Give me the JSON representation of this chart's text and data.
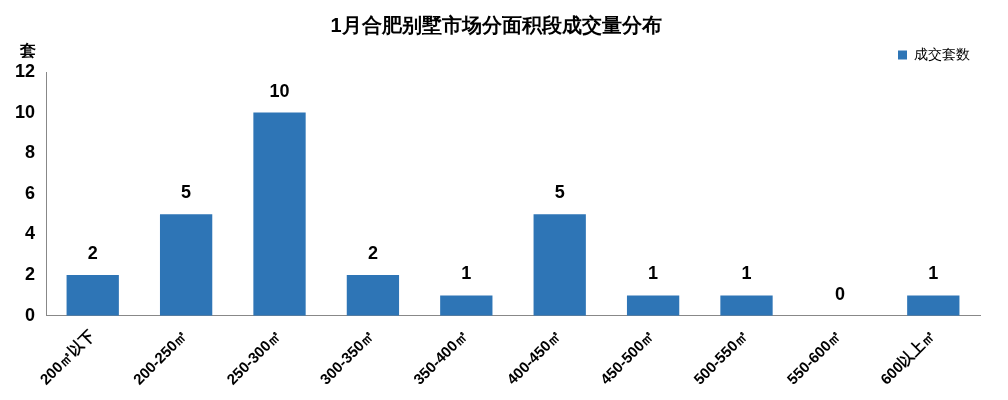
{
  "chart_data": {
    "type": "bar",
    "title": "1月合肥别墅市场分面积段成交量分布",
    "ylabel": "套",
    "categories": [
      "200㎡以下",
      "200-250㎡",
      "250-300㎡",
      "300-350㎡",
      "350-400㎡",
      "400-450㎡",
      "450-500㎡",
      "500-550㎡",
      "550-600㎡",
      "600以上㎡"
    ],
    "series": [
      {
        "name": "成交套数",
        "color": "#2e75b6",
        "values": [
          2,
          5,
          10,
          2,
          1,
          5,
          1,
          1,
          0,
          1
        ]
      }
    ],
    "ylim": [
      0,
      12
    ],
    "yticks": [
      0,
      2,
      4,
      6,
      8,
      10,
      12
    ],
    "grid": false,
    "legend": "top right",
    "data_labels": true
  }
}
